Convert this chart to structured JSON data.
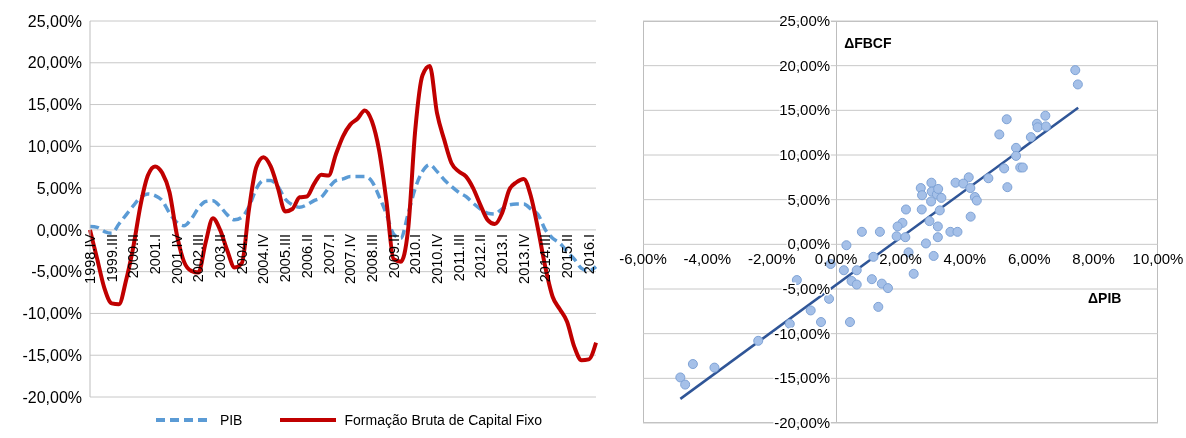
{
  "chart_data": [
    {
      "type": "line",
      "categories": [
        "1998.IV",
        null,
        null,
        "1999.III",
        null,
        null,
        "2000.II",
        null,
        null,
        "2001.I",
        null,
        null,
        "2001.IV",
        null,
        null,
        "2002.III",
        null,
        null,
        "2003.II",
        null,
        null,
        "2004.I",
        null,
        null,
        "2004.IV",
        null,
        null,
        "2005.III",
        null,
        null,
        "2006.II",
        null,
        null,
        "2007.I",
        null,
        null,
        "2007.IV",
        null,
        null,
        "2008.III",
        null,
        null,
        "2009.II",
        null,
        null,
        "2010.I",
        null,
        null,
        "2010.IV",
        null,
        null,
        "2011.III",
        null,
        null,
        "2012.II",
        null,
        null,
        "2013.I",
        null,
        null,
        "2013.IV",
        null,
        null,
        "2014.III",
        null,
        null,
        "2015.II",
        null,
        null,
        "2016.I",
        null
      ],
      "series": [
        {
          "name": "PIB",
          "color": "#5b9bd5",
          "line_style": "dashed",
          "values": [
            0.4,
            0.3,
            -0.2,
            -0.4,
            0.7,
            1.8,
            2.9,
            3.9,
            4.3,
            4.1,
            3.5,
            2.0,
            0.9,
            0.5,
            1.3,
            2.6,
            3.4,
            3.5,
            2.8,
            1.8,
            1.2,
            1.5,
            2.8,
            4.9,
            5.9,
            5.9,
            5.2,
            3.7,
            3.0,
            2.7,
            3.0,
            3.5,
            3.9,
            5.0,
            5.9,
            6.1,
            6.4,
            6.4,
            6.4,
            5.8,
            4.0,
            1.9,
            -0.5,
            -1.0,
            1.9,
            5.0,
            7.0,
            7.8,
            7.0,
            6.0,
            5.2,
            4.5,
            4.0,
            3.2,
            2.5,
            2.0,
            1.9,
            2.5,
            3.0,
            3.1,
            3.1,
            2.5,
            1.8,
            0.0,
            -1.0,
            -1.6,
            -2.6,
            -3.5,
            -4.6,
            -4.9,
            -4.4
          ]
        },
        {
          "name": "Formação Bruta de Capital Fixo",
          "color": "#c00000",
          "line_style": "solid",
          "values": [
            0.0,
            -3.5,
            -7.0,
            -8.8,
            -8.9,
            -6.0,
            -2.0,
            3.0,
            6.5,
            7.6,
            6.8,
            4.5,
            -0.5,
            -3.8,
            -4.9,
            -5.1,
            -1.5,
            1.4,
            0.0,
            -2.5,
            -4.5,
            -4.0,
            2.5,
            7.5,
            8.7,
            7.6,
            5.0,
            2.2,
            2.5,
            3.9,
            4.0,
            5.5,
            6.6,
            6.5,
            9.0,
            11.2,
            12.6,
            13.3,
            14.3,
            13.0,
            9.5,
            3.5,
            -3.5,
            -3.8,
            0.0,
            12.0,
            18.5,
            19.6,
            14.0,
            10.8,
            8.0,
            7.0,
            6.4,
            5.0,
            3.0,
            1.2,
            0.7,
            2.0,
            4.8,
            5.7,
            6.1,
            4.0,
            0.0,
            -4.5,
            -8.0,
            -9.5,
            -11.0,
            -14.0,
            -15.6,
            -15.5,
            -13.5
          ]
        }
      ],
      "ylim": [
        -20,
        25
      ],
      "yticks": [
        {
          "value": -20,
          "label": "-20,00%"
        },
        {
          "value": -15,
          "label": "-15,00%"
        },
        {
          "value": -10,
          "label": "-10,00%"
        },
        {
          "value": -5,
          "label": "-5,00%"
        },
        {
          "value": 0,
          "label": "0,00%"
        },
        {
          "value": 5,
          "label": "5,00%"
        },
        {
          "value": 10,
          "label": "10,00%"
        },
        {
          "value": 15,
          "label": "15,00%"
        },
        {
          "value": 20,
          "label": "20,00%"
        },
        {
          "value": 25,
          "label": "25,00%"
        }
      ],
      "grid": "y",
      "legend": "bottom",
      "marker": "none"
    },
    {
      "type": "scatter",
      "xlabel": "ΔPIB",
      "ylabel": "ΔFBCF",
      "series": [
        {
          "type": "scatter",
          "color": "#a5c0e8",
          "marker": "circle",
          "x": [
            7.43,
            7.51,
            5.3,
            6.5,
            6.24,
            6.26,
            6.52,
            5.07,
            6.05,
            5.59,
            5.59,
            5.22,
            5.72,
            5.8,
            5.32,
            4.73,
            4.12,
            3.71,
            3.95,
            4.17,
            4.31,
            4.37,
            4.18,
            2.96,
            2.63,
            2.67,
            2.97,
            3.13,
            3.17,
            3.27,
            2.95,
            3.22,
            2.66,
            2.17,
            2.06,
            1.91,
            2.9,
            3.16,
            0.8,
            1.36,
            3.55,
            3.77,
            1.88,
            2.15,
            3.16,
            0.32,
            2.79,
            2.25,
            1.16,
            3.03,
            -0.17,
            0.24,
            0.64,
            -1.22,
            0.48,
            0.64,
            1.11,
            1.42,
            1.61,
            2.41,
            -0.22,
            -0.79,
            1.31,
            -1.44,
            -0.47,
            0.43,
            -2.42,
            -4.45,
            -3.78,
            -4.84,
            -4.69
          ],
          "values": [
            19.5,
            17.9,
            14.0,
            14.4,
            13.5,
            13.1,
            13.2,
            12.3,
            12.0,
            10.8,
            9.9,
            8.5,
            8.6,
            8.6,
            6.4,
            7.4,
            7.5,
            6.9,
            6.8,
            6.3,
            5.3,
            4.9,
            3.1,
            6.9,
            6.3,
            5.5,
            5.9,
            5.6,
            6.2,
            5.2,
            4.8,
            3.8,
            3.9,
            3.9,
            2.4,
            2.0,
            2.6,
            2.0,
            1.4,
            1.4,
            1.4,
            1.4,
            0.9,
            0.8,
            0.8,
            -0.1,
            0.1,
            -0.9,
            -1.4,
            -1.3,
            -2.2,
            -2.9,
            -2.9,
            -4.0,
            -4.1,
            -4.5,
            -3.9,
            -4.4,
            -4.9,
            -3.3,
            -6.1,
            -7.4,
            -7.0,
            -8.9,
            -8.7,
            -8.7,
            -10.8,
            -13.4,
            -13.8,
            -14.9,
            -15.7
          ]
        },
        {
          "type": "line",
          "color": "#2f5597",
          "marker": "none",
          "x": [
            -4.84,
            7.52
          ],
          "values": [
            -17.3,
            15.3
          ]
        }
      ],
      "xlim": [
        -6,
        10
      ],
      "xticks": [
        {
          "value": -6,
          "label": "-6,00%"
        },
        {
          "value": -4,
          "label": "-4,00%"
        },
        {
          "value": -2,
          "label": "-2,00%"
        },
        {
          "value": 0,
          "label": "0,00%"
        },
        {
          "value": 2,
          "label": "2,00%"
        },
        {
          "value": 4,
          "label": "4,00%"
        },
        {
          "value": 6,
          "label": "6,00%"
        },
        {
          "value": 8,
          "label": "8,00%"
        },
        {
          "value": 10,
          "label": "10,00%"
        }
      ],
      "ylim": [
        -20,
        25
      ],
      "yticks": [
        {
          "value": -20,
          "label": "-20,00%"
        },
        {
          "value": -15,
          "label": "-15,00%"
        },
        {
          "value": -10,
          "label": "-10,00%"
        },
        {
          "value": -5,
          "label": "-5,00%"
        },
        {
          "value": 0,
          "label": "0,00%"
        },
        {
          "value": 5,
          "label": "5,00%"
        },
        {
          "value": 10,
          "label": "10,00%"
        },
        {
          "value": 15,
          "label": "15,00%"
        },
        {
          "value": 20,
          "label": "20,00%"
        },
        {
          "value": 25,
          "label": "25,00%"
        }
      ],
      "grid": "y"
    }
  ]
}
